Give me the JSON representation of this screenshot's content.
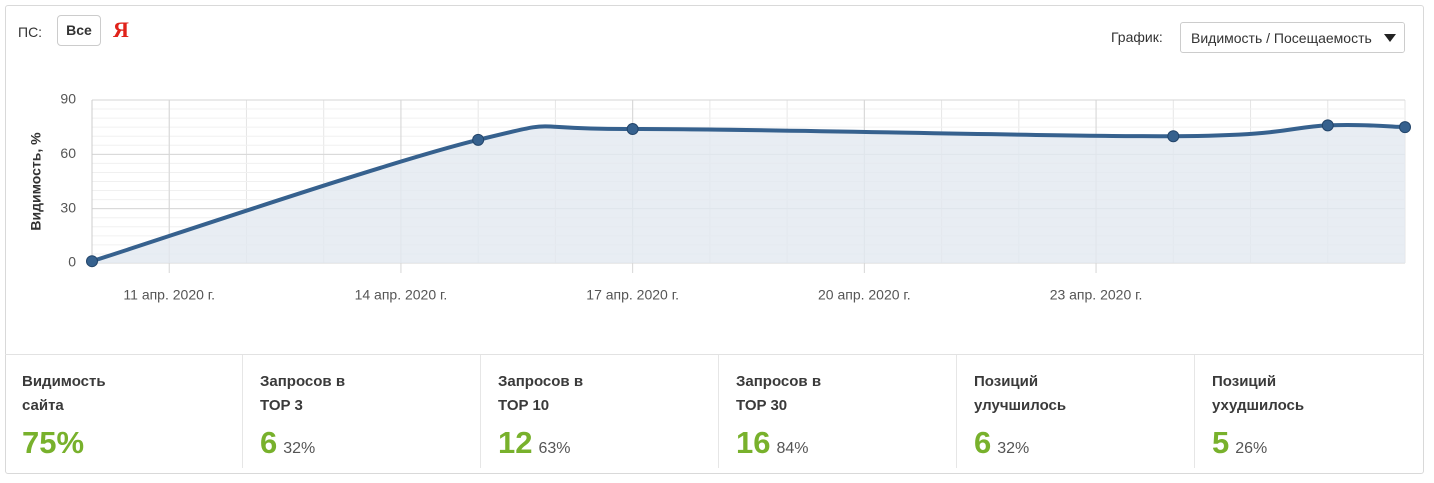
{
  "toolbar": {
    "engine_label": "ПС:",
    "engine_all": "Все",
    "engine_yandex": "Я",
    "chart_label": "График:",
    "chart_select": "Видимость / Посещаемость"
  },
  "chart_data": {
    "type": "line",
    "y_label": "Видимость, %",
    "x": [
      10,
      15,
      17,
      24,
      26,
      27
    ],
    "series": [
      {
        "name": "Видимость",
        "color": "#36618e",
        "fill": "#e2e8f0",
        "values": [
          1,
          68,
          74,
          70,
          76,
          75
        ]
      }
    ],
    "xlim": [
      10,
      27
    ],
    "xticks": [
      {
        "value": 11,
        "label": "11 апр. 2020 г."
      },
      {
        "value": 14,
        "label": "14 апр. 2020 г."
      },
      {
        "value": 17,
        "label": "17 апр. 2020 г."
      },
      {
        "value": 20,
        "label": "20 апр. 2020 г."
      },
      {
        "value": 23,
        "label": "23 апр. 2020 г."
      }
    ],
    "ylim": [
      0,
      90
    ],
    "yticks": [
      0,
      30,
      60,
      90
    ],
    "grid": true
  },
  "stats": [
    {
      "label": [
        "Видимость",
        "сайта"
      ],
      "value": "75%",
      "share": null
    },
    {
      "label": [
        "Запросов в",
        "TOP 3"
      ],
      "value": "6",
      "share": "32%"
    },
    {
      "label": [
        "Запросов в",
        "TOP 10"
      ],
      "value": "12",
      "share": "63%"
    },
    {
      "label": [
        "Запросов в",
        "TOP 30"
      ],
      "value": "16",
      "share": "84%"
    },
    {
      "label": [
        "Позиций",
        "улучшилось"
      ],
      "value": "6",
      "share": "32%"
    },
    {
      "label": [
        "Позиций",
        "ухудшилось"
      ],
      "value": "5",
      "share": "26%"
    }
  ]
}
